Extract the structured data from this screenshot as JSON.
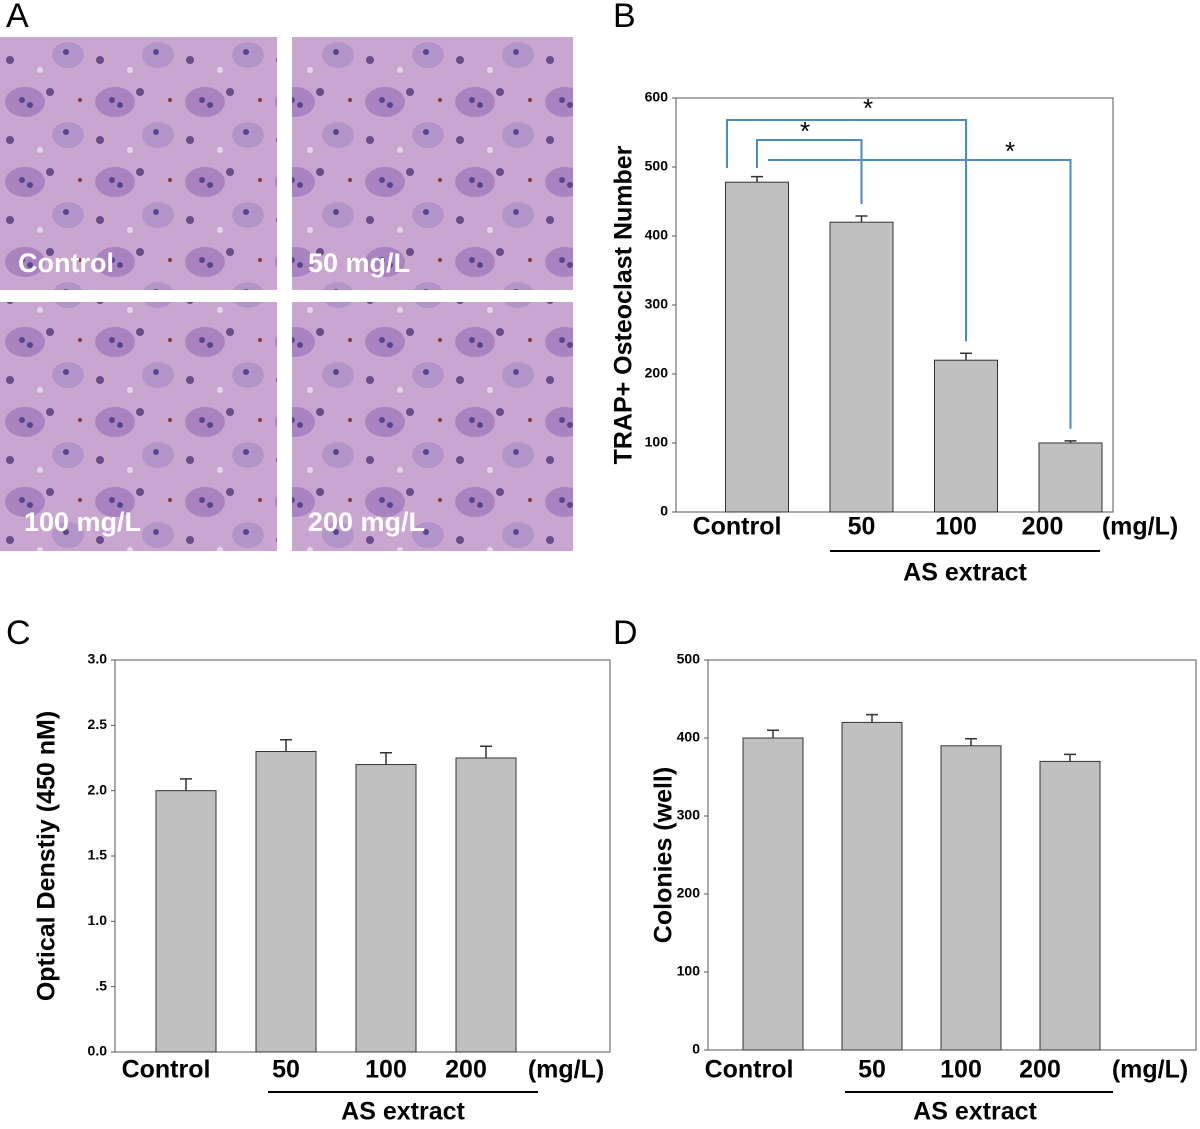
{
  "panel_labels": [
    "A",
    "B",
    "C",
    "D"
  ],
  "micrographs": [
    "Control",
    "50 mg/L",
    "100 mg/L",
    "200 mg/L"
  ],
  "chart_data": [
    {
      "type": "bar",
      "ylabel": "TRAP+ Osteoclast Number",
      "categories": [
        "Control",
        "50",
        "100",
        "200"
      ],
      "unit_label": "(mg/L)",
      "group_label": "AS extract",
      "values": [
        478,
        420,
        220,
        100
      ],
      "errors": [
        8,
        9,
        10,
        3
      ],
      "color": "#c0c0c0",
      "ylim": [
        0,
        600
      ],
      "yticks": [
        0,
        100,
        200,
        300,
        400,
        500,
        600
      ],
      "significance": [
        "*",
        "*",
        "*"
      ],
      "bracket_color": "#4a8bc4"
    },
    {
      "type": "bar",
      "ylabel": "Optical Denstiy (450 nM)",
      "categories": [
        "Control",
        "50",
        "100",
        "200"
      ],
      "unit_label": "(mg/L)",
      "group_label": "AS extract",
      "values": [
        2.0,
        2.3,
        2.2,
        2.25
      ],
      "errors": [
        0.09,
        0.09,
        0.09,
        0.09
      ],
      "color": "#c0c0c0",
      "ylim": [
        0,
        3
      ],
      "yticks": [
        {
          "value": 0,
          "label": "0.0"
        },
        {
          "value": 0.5,
          "label": ".5"
        },
        {
          "value": 1,
          "label": "1.0"
        },
        {
          "value": 1.5,
          "label": "1.5"
        },
        {
          "value": 2,
          "label": "2.0"
        },
        {
          "value": 2.5,
          "label": "2.5"
        },
        {
          "value": 3,
          "label": "3.0"
        }
      ]
    },
    {
      "type": "bar",
      "ylabel": "Colonies (well)",
      "categories": [
        "Control",
        "50",
        "100",
        "200"
      ],
      "unit_label": "(mg/L)",
      "group_label": "AS extract",
      "values": [
        400,
        420,
        390,
        370
      ],
      "errors": [
        10,
        10,
        9,
        9
      ],
      "color": "#c0c0c0",
      "ylim": [
        0,
        500
      ],
      "yticks": [
        0,
        100,
        200,
        300,
        400,
        500
      ]
    }
  ]
}
